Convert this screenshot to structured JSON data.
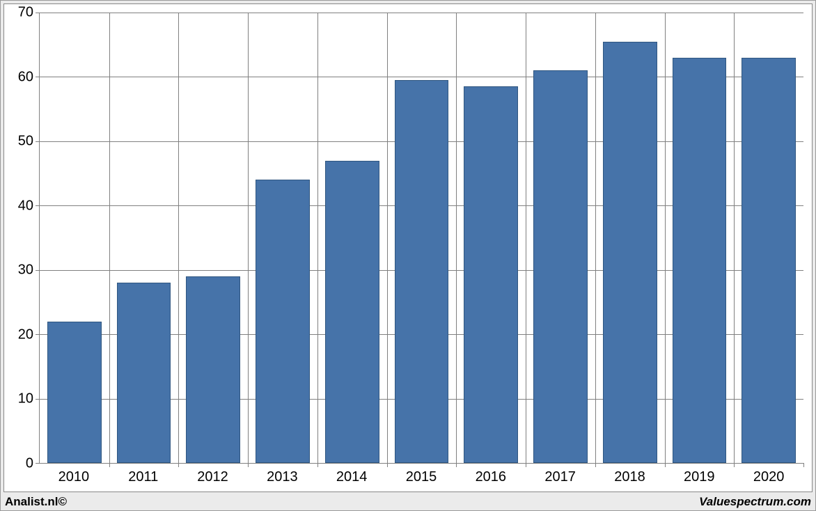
{
  "chart": {
    "type": "bar",
    "categories": [
      "2010",
      "2011",
      "2012",
      "2013",
      "2014",
      "2015",
      "2016",
      "2017",
      "2018",
      "2019",
      "2020"
    ],
    "values": [
      22,
      28,
      29,
      44,
      47,
      59.5,
      58.5,
      61,
      65.5,
      63,
      63
    ],
    "bar_color": "#4673a9",
    "bar_border_color": "#2f5680",
    "bar_width_ratio": 0.78,
    "ylim": [
      0,
      70
    ],
    "ytick_step": 10,
    "y_ticks": [
      0,
      10,
      20,
      30,
      40,
      50,
      60,
      70
    ],
    "background_color": "#ffffff",
    "outer_background_color": "#ebebeb",
    "grid_color": "#808080",
    "axis_color": "#808080",
    "label_fontsize": 20,
    "label_color": "#000000"
  },
  "footer": {
    "left": "Analist.nl©",
    "right": "Valuespectrum.com"
  }
}
